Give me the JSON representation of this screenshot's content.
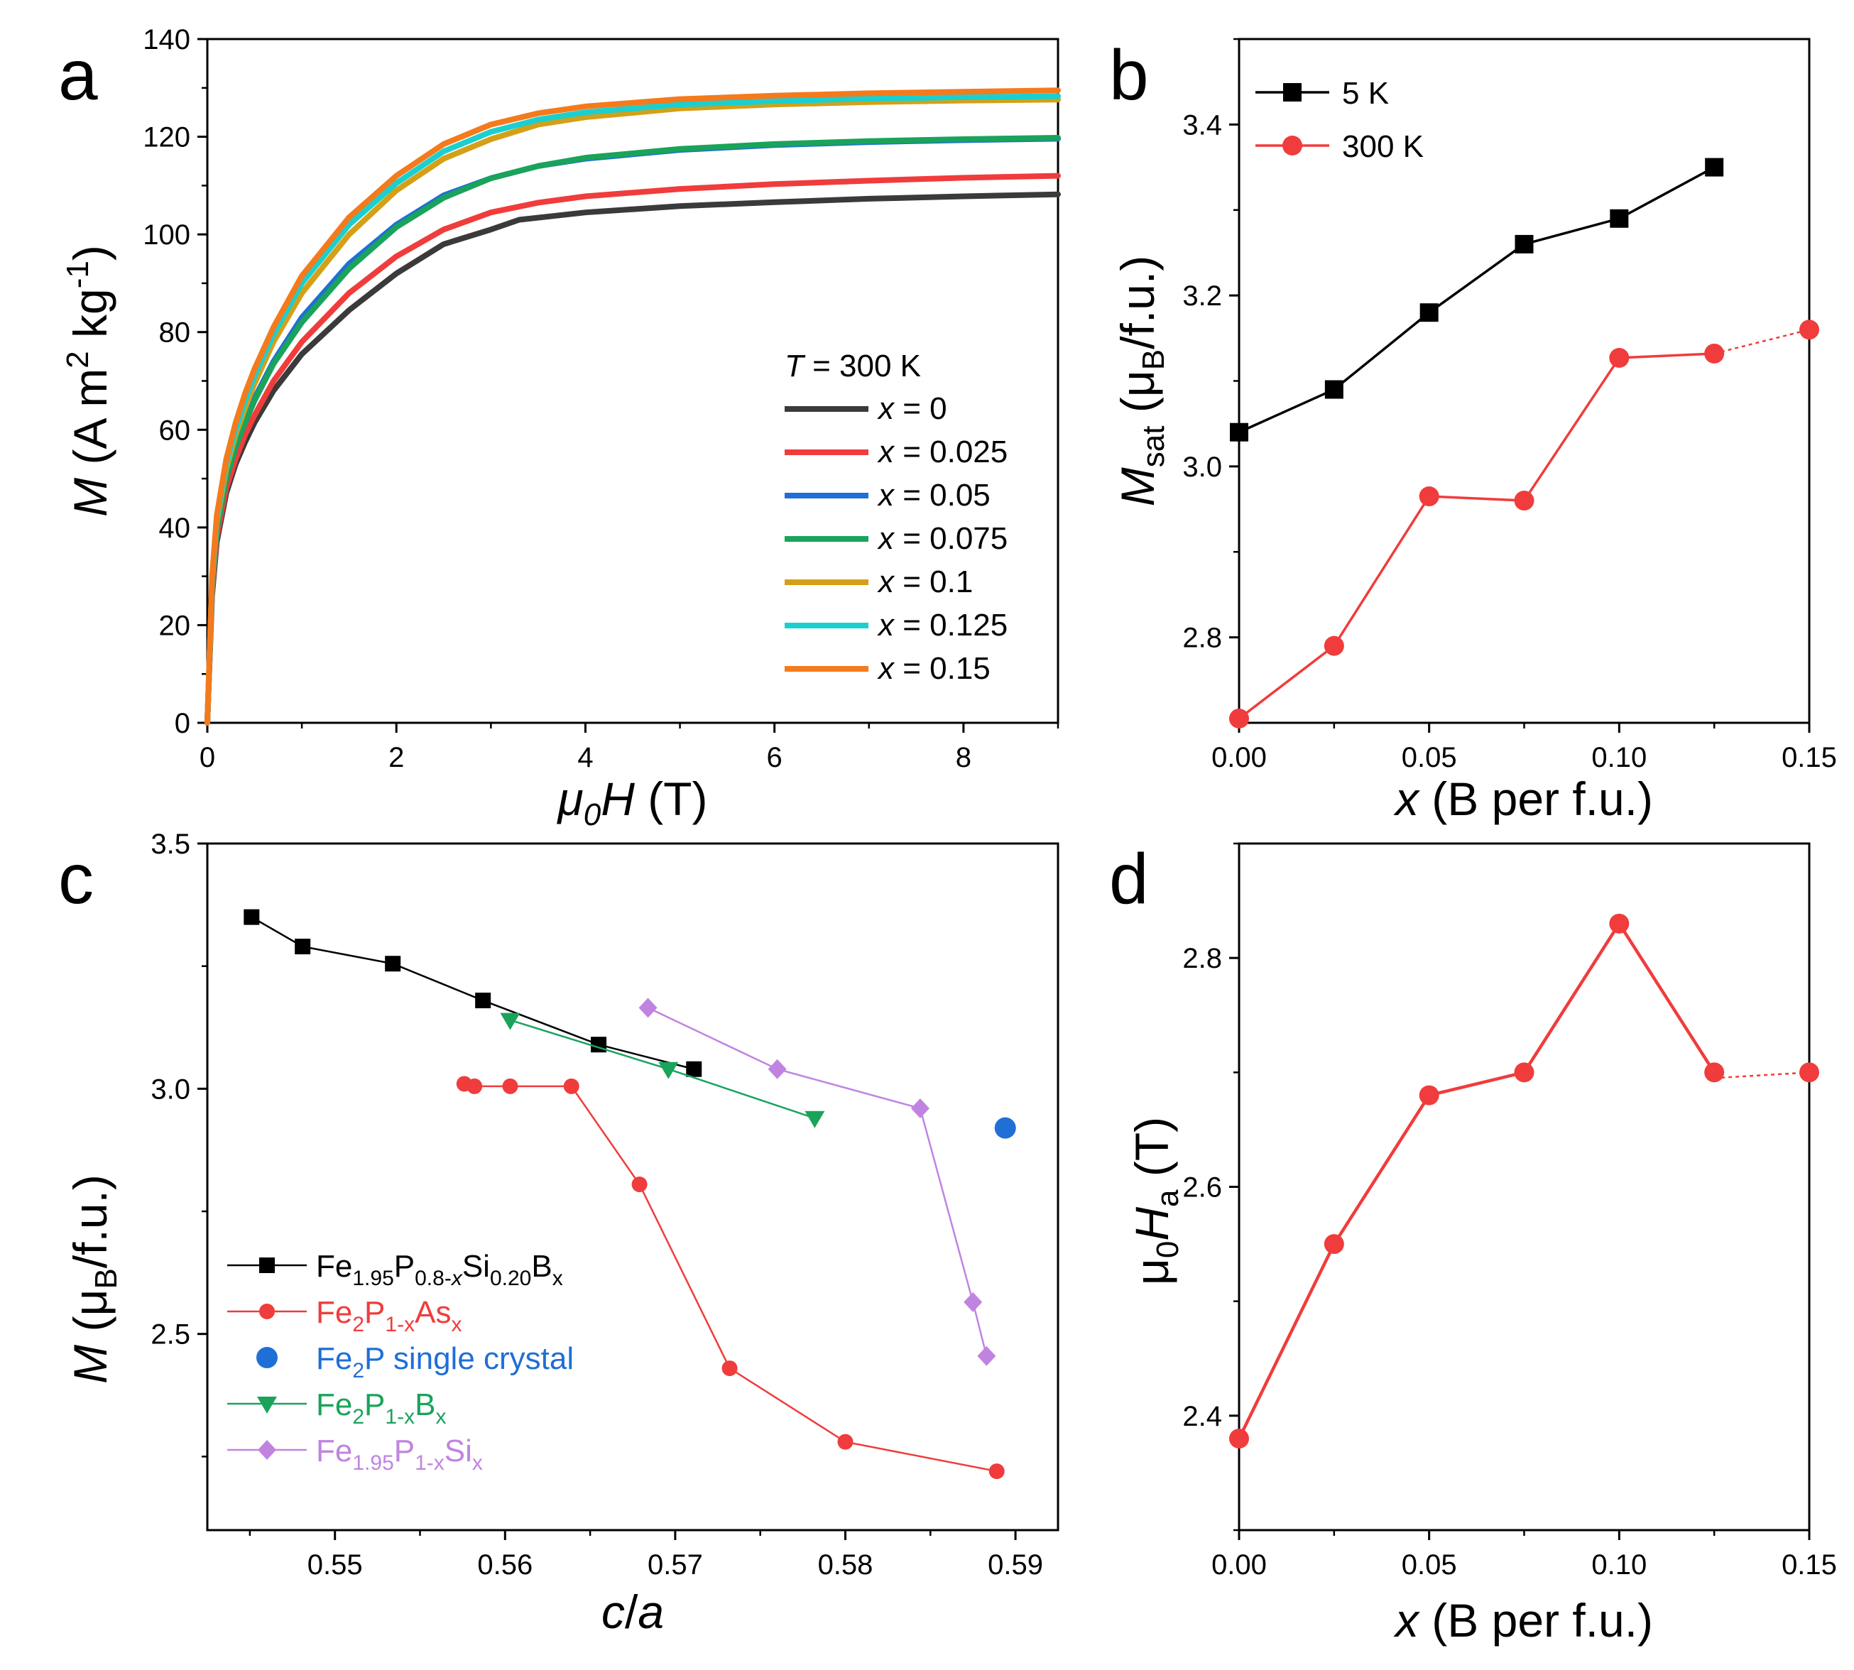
{
  "chart_data": [
    {
      "panel": "a",
      "type": "line",
      "xlabel": {
        "italic": "μ",
        "sub": "0",
        "italic2": "H",
        "rest": " (T)"
      },
      "ylabel": {
        "italic": "M",
        "rest": " (A m",
        "sup": "2",
        "rest2": " kg",
        "sup2": "-1",
        "close": ")"
      },
      "xlim": [
        0,
        9
      ],
      "ylim": [
        0,
        140
      ],
      "xticks": [
        "0",
        "2",
        "4",
        "6",
        "8"
      ],
      "yticks": [
        "0",
        "20",
        "40",
        "60",
        "80",
        "100",
        "120",
        "140"
      ],
      "legend_title": {
        "italic": "T",
        "rest": " = 300 K"
      },
      "legend_position": "lower-right",
      "series": [
        {
          "name": "x = 0",
          "label_prefix": "x",
          "label_rest": " = 0",
          "color": "#3a3a3a",
          "values": [
            [
              0,
              0
            ],
            [
              0.05,
              26
            ],
            [
              0.1,
              37
            ],
            [
              0.2,
              47
            ],
            [
              0.3,
              53
            ],
            [
              0.4,
              57.5
            ],
            [
              0.5,
              61.5
            ],
            [
              0.7,
              68
            ],
            [
              1.0,
              75.5
            ],
            [
              1.5,
              84.5
            ],
            [
              2.0,
              92
            ],
            [
              2.5,
              98
            ],
            [
              3.0,
              101
            ],
            [
              3.3,
              103
            ],
            [
              4.0,
              104.5
            ],
            [
              5.0,
              105.8
            ],
            [
              6.0,
              106.6
            ],
            [
              7.0,
              107.3
            ],
            [
              8.0,
              107.8
            ],
            [
              9.0,
              108.2
            ]
          ]
        },
        {
          "name": "x = 0.025",
          "label_prefix": "x",
          "label_rest": " = 0.025",
          "color": "#f03c3c",
          "values": [
            [
              0,
              0
            ],
            [
              0.05,
              27
            ],
            [
              0.1,
              38
            ],
            [
              0.2,
              48
            ],
            [
              0.3,
              54
            ],
            [
              0.4,
              59
            ],
            [
              0.5,
              63
            ],
            [
              0.7,
              70
            ],
            [
              1.0,
              78
            ],
            [
              1.5,
              88
            ],
            [
              2.0,
              95.5
            ],
            [
              2.5,
              101
            ],
            [
              3.0,
              104.5
            ],
            [
              3.5,
              106.5
            ],
            [
              4.0,
              107.8
            ],
            [
              5.0,
              109.3
            ],
            [
              6.0,
              110.3
            ],
            [
              7.0,
              111
            ],
            [
              8.0,
              111.6
            ],
            [
              9.0,
              112
            ]
          ]
        },
        {
          "name": "x = 0.05",
          "label_prefix": "x",
          "label_rest": " = 0.05",
          "color": "#1f6fd6",
          "values": [
            [
              0,
              0
            ],
            [
              0.05,
              28
            ],
            [
              0.1,
              39.5
            ],
            [
              0.2,
              50
            ],
            [
              0.3,
              56.5
            ],
            [
              0.4,
              62
            ],
            [
              0.5,
              66.5
            ],
            [
              0.7,
              74
            ],
            [
              1.0,
              83
            ],
            [
              1.5,
              94
            ],
            [
              2.0,
              102
            ],
            [
              2.5,
              108
            ],
            [
              3.0,
              111.5
            ],
            [
              3.5,
              114
            ],
            [
              4.0,
              115.5
            ],
            [
              5.0,
              117.3
            ],
            [
              6.0,
              118.3
            ],
            [
              7.0,
              118.9
            ],
            [
              8.0,
              119.3
            ],
            [
              9.0,
              119.6
            ]
          ]
        },
        {
          "name": "x = 0.075",
          "label_prefix": "x",
          "label_rest": " = 0.075",
          "color": "#1aa35a",
          "values": [
            [
              0,
              0
            ],
            [
              0.05,
              28
            ],
            [
              0.1,
              39.5
            ],
            [
              0.2,
              50
            ],
            [
              0.3,
              56.5
            ],
            [
              0.4,
              61.5
            ],
            [
              0.5,
              66
            ],
            [
              0.7,
              73.5
            ],
            [
              1.0,
              82
            ],
            [
              1.5,
              93
            ],
            [
              2.0,
              101.5
            ],
            [
              2.5,
              107.5
            ],
            [
              3.0,
              111.5
            ],
            [
              3.5,
              114
            ],
            [
              4.0,
              115.7
            ],
            [
              5.0,
              117.5
            ],
            [
              6.0,
              118.5
            ],
            [
              7.0,
              119.1
            ],
            [
              8.0,
              119.5
            ],
            [
              9.0,
              119.8
            ]
          ]
        },
        {
          "name": "x = 0.1",
          "label_prefix": "x",
          "label_rest": " = 0.1",
          "color": "#d4a017",
          "values": [
            [
              0,
              0
            ],
            [
              0.05,
              29
            ],
            [
              0.1,
              41
            ],
            [
              0.2,
              52
            ],
            [
              0.3,
              59
            ],
            [
              0.4,
              64.5
            ],
            [
              0.5,
              69.5
            ],
            [
              0.7,
              78
            ],
            [
              1.0,
              88
            ],
            [
              1.5,
              100
            ],
            [
              2.0,
              109
            ],
            [
              2.5,
              115.5
            ],
            [
              3.0,
              119.5
            ],
            [
              3.5,
              122.5
            ],
            [
              4.0,
              124
            ],
            [
              5.0,
              125.8
            ],
            [
              6.0,
              126.6
            ],
            [
              7.0,
              127.1
            ],
            [
              8.0,
              127.4
            ],
            [
              9.0,
              127.6
            ]
          ]
        },
        {
          "name": "x = 0.125",
          "label_prefix": "x",
          "label_rest": " = 0.125",
          "color": "#1ccfcf",
          "values": [
            [
              0,
              0
            ],
            [
              0.05,
              29
            ],
            [
              0.1,
              41.5
            ],
            [
              0.2,
              53
            ],
            [
              0.3,
              60
            ],
            [
              0.4,
              66
            ],
            [
              0.5,
              71
            ],
            [
              0.7,
              79.5
            ],
            [
              1.0,
              90
            ],
            [
              1.5,
              102
            ],
            [
              2.0,
              110.5
            ],
            [
              2.5,
              117
            ],
            [
              3.0,
              121
            ],
            [
              3.5,
              123.5
            ],
            [
              4.0,
              125
            ],
            [
              5.0,
              126.6
            ],
            [
              6.0,
              127.3
            ],
            [
              7.0,
              127.8
            ],
            [
              8.0,
              128.1
            ],
            [
              9.0,
              128.3
            ]
          ]
        },
        {
          "name": "x = 0.15",
          "label_prefix": "x",
          "label_rest": " = 0.15",
          "color": "#f47a1c",
          "values": [
            [
              0,
              0
            ],
            [
              0.05,
              30
            ],
            [
              0.1,
              42.5
            ],
            [
              0.2,
              54
            ],
            [
              0.3,
              61.5
            ],
            [
              0.4,
              67.5
            ],
            [
              0.5,
              72.5
            ],
            [
              0.7,
              81
            ],
            [
              1.0,
              91.5
            ],
            [
              1.5,
              103.5
            ],
            [
              2.0,
              112
            ],
            [
              2.5,
              118.5
            ],
            [
              3.0,
              122.5
            ],
            [
              3.5,
              124.8
            ],
            [
              4.0,
              126.2
            ],
            [
              5.0,
              127.7
            ],
            [
              6.0,
              128.4
            ],
            [
              7.0,
              128.9
            ],
            [
              8.0,
              129.2
            ],
            [
              9.0,
              129.5
            ]
          ]
        }
      ]
    },
    {
      "panel": "b",
      "type": "line",
      "xlabel": {
        "italic": "x",
        "rest": " (B per f.u.)"
      },
      "ylabel": {
        "italic": "M",
        "sub": "sat",
        "rest": " (μ",
        "sub2": "B",
        "close": "/f.u.)"
      },
      "xlim": [
        0,
        0.15
      ],
      "ylim": [
        2.7,
        3.5
      ],
      "xticks": [
        "0.00",
        "0.05",
        "0.10",
        "0.15"
      ],
      "yticks": [
        "2.8",
        "3.0",
        "3.2",
        "3.4"
      ],
      "legend_position": "top-left",
      "series": [
        {
          "name": "5 K",
          "color": "#000000",
          "marker": "square",
          "x": [
            0,
            0.025,
            0.05,
            0.075,
            0.1,
            0.125
          ],
          "values": [
            3.04,
            3.09,
            3.18,
            3.26,
            3.29,
            3.35
          ]
        },
        {
          "name": "300 K",
          "color": "#f03c3c",
          "marker": "circle",
          "x": [
            0,
            0.025,
            0.05,
            0.075,
            0.1,
            0.125
          ],
          "values": [
            2.705,
            2.79,
            2.965,
            2.96,
            3.127,
            3.132
          ],
          "dotted_extension": [
            [
              0.125,
              3.132
            ],
            [
              0.15,
              3.16
            ]
          ]
        }
      ]
    },
    {
      "panel": "c",
      "type": "line",
      "xlabel": {
        "italic": "c",
        "rest": "/",
        "italic2": "a"
      },
      "ylabel": {
        "italic": "M",
        "rest": " (μ",
        "sub": "B",
        "close": "/f.u.)"
      },
      "xlim": [
        0.5425,
        0.5925
      ],
      "ylim": [
        2.1,
        3.5
      ],
      "xticks": [
        "0.55",
        "0.56",
        "0.57",
        "0.58",
        "0.59"
      ],
      "yticks": [
        "2.5",
        "3.0",
        "3.5"
      ],
      "legend_position": "lower-left",
      "series": [
        {
          "name": "Fe1.95P0.8-xSi0.20Bx",
          "parts": [
            [
              "Fe",
              ""
            ],
            [
              "1.95",
              "sub"
            ],
            [
              "P",
              ""
            ],
            [
              "0.8-",
              "sub"
            ],
            [
              "x",
              "subi"
            ],
            [
              "Si",
              ""
            ],
            [
              "0.20",
              "sub"
            ],
            [
              "B",
              ""
            ],
            [
              "x",
              "sub"
            ]
          ],
          "color": "#000000",
          "marker": "square",
          "x": [
            0.5451,
            0.5481,
            0.5534,
            0.5587,
            0.5655,
            0.5711
          ],
          "values": [
            3.35,
            3.29,
            3.255,
            3.18,
            3.09,
            3.04
          ]
        },
        {
          "name": "Fe2P1-xAsx",
          "parts": [
            [
              "Fe",
              ""
            ],
            [
              "2",
              "sub"
            ],
            [
              "P",
              ""
            ],
            [
              "1-x",
              "sub"
            ],
            [
              "As",
              ""
            ],
            [
              "x",
              "sub"
            ]
          ],
          "color": "#f03c3c",
          "marker": "circle",
          "x": [
            0.5576,
            0.5582,
            0.5603,
            0.5639,
            0.5679,
            0.5732,
            0.58,
            0.5889
          ],
          "values": [
            3.01,
            3.005,
            3.005,
            3.005,
            2.805,
            2.43,
            2.28,
            2.22
          ]
        },
        {
          "name": "Fe2P single crystal",
          "parts": [
            [
              "Fe",
              ""
            ],
            [
              "2",
              "sub"
            ],
            [
              "P single crystal",
              ""
            ]
          ],
          "color": "#1f6fd6",
          "marker": "bigcircle",
          "x": [
            0.5894
          ],
          "values": [
            2.92
          ]
        },
        {
          "name": "Fe2P1-xBx",
          "parts": [
            [
              "Fe",
              ""
            ],
            [
              "2",
              "sub"
            ],
            [
              "P",
              ""
            ],
            [
              "1-x",
              "sub"
            ],
            [
              "B",
              ""
            ],
            [
              "x",
              "sub"
            ]
          ],
          "color": "#1aa35a",
          "marker": "triangle-down",
          "x": [
            0.5603,
            0.5696,
            0.5782
          ],
          "values": [
            3.14,
            3.04,
            2.94
          ]
        },
        {
          "name": "Fe1.95P1-xSix",
          "parts": [
            [
              "Fe",
              ""
            ],
            [
              "1.95",
              "sub"
            ],
            [
              "P",
              ""
            ],
            [
              "1-x",
              "sub"
            ],
            [
              "Si",
              ""
            ],
            [
              "x",
              "sub"
            ]
          ],
          "color": "#c084e0",
          "marker": "diamond",
          "x": [
            0.5684,
            0.576,
            0.5844,
            0.5875,
            0.5883
          ],
          "values": [
            3.165,
            3.04,
            2.96,
            2.565,
            2.455
          ]
        }
      ]
    },
    {
      "panel": "d",
      "type": "line",
      "xlabel": {
        "italic": "x",
        "rest": " (B per f.u.)"
      },
      "ylabel": {
        "rest": "μ",
        "sub": "0",
        "italic": "H",
        "sub2": "a",
        "close": " (T)"
      },
      "xlim": [
        0,
        0.15
      ],
      "ylim": [
        2.3,
        2.9
      ],
      "xticks": [
        "0.00",
        "0.05",
        "0.10",
        "0.15"
      ],
      "yticks": [
        "2.4",
        "2.6",
        "2.8"
      ],
      "series": [
        {
          "name": "",
          "color": "#f03c3c",
          "marker": "circle",
          "x": [
            0,
            0.025,
            0.05,
            0.075,
            0.1,
            0.125
          ],
          "values": [
            2.38,
            2.55,
            2.68,
            2.7,
            2.83,
            2.7
          ],
          "dotted_extension": [
            [
              0.125,
              2.695
            ],
            [
              0.15,
              2.7
            ]
          ]
        }
      ]
    }
  ]
}
